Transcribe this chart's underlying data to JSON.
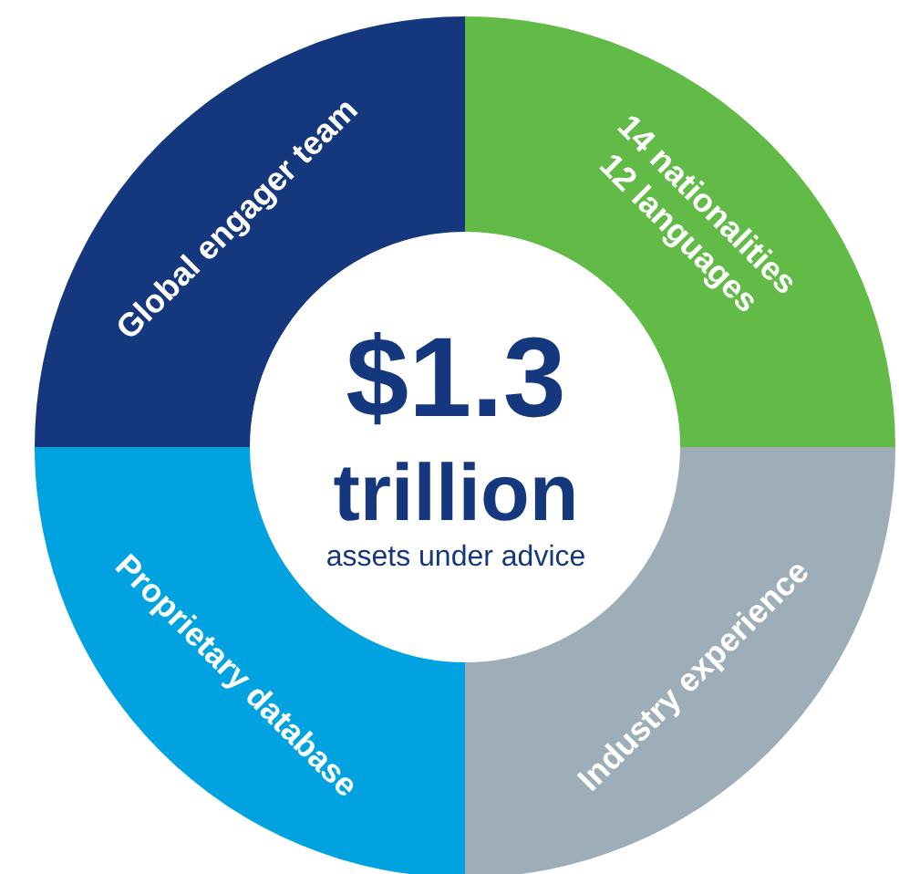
{
  "chart_data": {
    "type": "donut",
    "categories": [
      "14 nationalities\n12 languages",
      "Industry experience",
      "Proprietary database",
      "Global engager team"
    ],
    "values": [
      25,
      25,
      25,
      25
    ],
    "colors": [
      "#62bb46",
      "#9eaeb8",
      "#00a3e0",
      "#14377d"
    ],
    "annotations": [
      "$1.3",
      "trillion",
      "assets under advice"
    ]
  }
}
